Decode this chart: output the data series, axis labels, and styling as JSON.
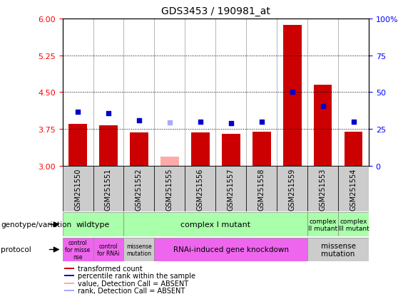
{
  "title": "GDS3453 / 190981_at",
  "samples": [
    "GSM251550",
    "GSM251551",
    "GSM251552",
    "GSM251555",
    "GSM251556",
    "GSM251557",
    "GSM251558",
    "GSM251559",
    "GSM251553",
    "GSM251554"
  ],
  "bar_values": [
    3.85,
    3.82,
    3.68,
    3.18,
    3.68,
    3.65,
    3.7,
    5.87,
    4.65,
    3.7
  ],
  "bar_colors": [
    "#cc0000",
    "#cc0000",
    "#cc0000",
    "#ffaaaa",
    "#cc0000",
    "#cc0000",
    "#cc0000",
    "#cc0000",
    "#cc0000",
    "#cc0000"
  ],
  "dot_values": [
    4.1,
    4.07,
    3.93,
    3.88,
    3.9,
    3.87,
    3.9,
    4.5,
    4.22,
    3.9
  ],
  "dot_colors": [
    "#0000cc",
    "#0000cc",
    "#0000cc",
    "#aaaaff",
    "#0000cc",
    "#0000cc",
    "#0000cc",
    "#0000cc",
    "#0000cc",
    "#0000cc"
  ],
  "ylim": [
    3.0,
    6.0
  ],
  "y_ticks_left": [
    3.0,
    3.75,
    4.5,
    5.25,
    6.0
  ],
  "y_ticks_right": [
    0,
    25,
    50,
    75,
    100
  ],
  "hlines": [
    3.75,
    4.5,
    5.25
  ],
  "bar_base": 3.0,
  "genotype_groups": [
    {
      "label": "wildtype",
      "start": 0,
      "end": 2,
      "color": "#aaffaa"
    },
    {
      "label": "complex I mutant",
      "start": 2,
      "end": 8,
      "color": "#aaffaa"
    },
    {
      "label": "complex\nII mutant",
      "start": 8,
      "end": 9,
      "color": "#aaffaa"
    },
    {
      "label": "complex\nIII mutant",
      "start": 9,
      "end": 10,
      "color": "#aaffaa"
    }
  ],
  "protocol_groups": [
    {
      "label": "control\nfor misse\nnse",
      "start": 0,
      "end": 1,
      "color": "#ee66ee"
    },
    {
      "label": "control\nfor RNAi",
      "start": 1,
      "end": 2,
      "color": "#ee66ee"
    },
    {
      "label": "missense\nmutation",
      "start": 2,
      "end": 3,
      "color": "#cccccc"
    },
    {
      "label": "RNAi-induced gene knockdown",
      "start": 3,
      "end": 8,
      "color": "#ee66ee"
    },
    {
      "label": "missense\nmutation",
      "start": 8,
      "end": 10,
      "color": "#cccccc"
    }
  ],
  "legend_items": [
    {
      "label": "transformed count",
      "color": "#cc0000"
    },
    {
      "label": "percentile rank within the sample",
      "color": "#0000cc"
    },
    {
      "label": "value, Detection Call = ABSENT",
      "color": "#ffaaaa"
    },
    {
      "label": "rank, Detection Call = ABSENT",
      "color": "#aaaaff"
    }
  ],
  "bg_color": "#ffffff",
  "xticklabel_bg": "#cccccc"
}
